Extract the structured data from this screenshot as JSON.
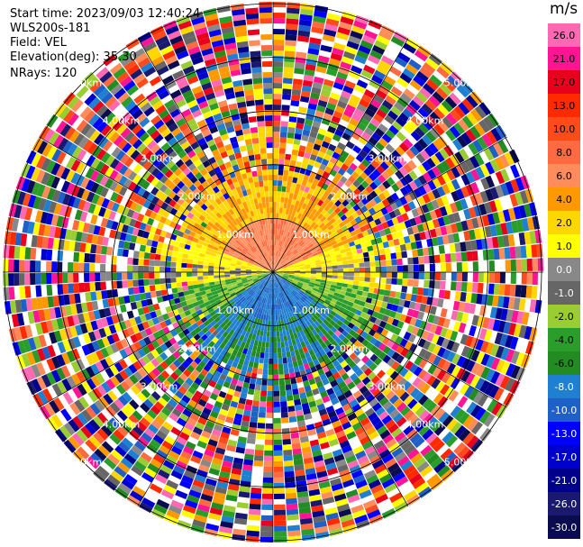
{
  "header": {
    "start_time": "Start time: 2023/09/03 12:40:24",
    "instrument": "WLS200s-181",
    "field": "Field: VEL",
    "elevation": "Elevation(deg): 35.30",
    "nrays": "NRays: 120"
  },
  "chart_data": {
    "type": "heatmap",
    "projection": "polar PPI",
    "field": "VEL",
    "units": "m/s",
    "n_rays": 120,
    "range_rings": [
      {
        "label": "1.00km"
      },
      {
        "label": "2.00km"
      },
      {
        "label": "3.00km"
      },
      {
        "label": "4.00km"
      },
      {
        "label": "5.00km"
      }
    ],
    "grid": true,
    "colorbar": {
      "position": "right",
      "ticks": [
        "26.0",
        "21.0",
        "17.0",
        "13.0",
        "10.0",
        "8.0",
        "6.0",
        "4.0",
        "2.0",
        "1.0",
        "0.0",
        "-1.0",
        "-2.0",
        "-4.0",
        "-6.0",
        "-8.0",
        "-10.0",
        "-13.0",
        "-17.0",
        "-21.0",
        "-26.0",
        "-30.0"
      ],
      "colors": [
        "#ff69b4",
        "#ff1493",
        "#e8001c",
        "#ff2a00",
        "#ff4a1a",
        "#ff6a40",
        "#ff8c5a",
        "#ff9900",
        "#ffd700",
        "#ffff00",
        "#888888",
        "#666666",
        "#9acd32",
        "#2a9d2a",
        "#228b22",
        "#1f7fd0",
        "#1f60c8",
        "#0000ff",
        "#0000cd",
        "#00008b",
        "#191970",
        "#0b0b50"
      ],
      "min": -30,
      "max": 30
    },
    "pattern": {
      "inner_positive_sector": "north: orange/red near radar",
      "east_west_band": "yellow and gray near-zero values",
      "south_negative_sector": "green to blue receding velocities",
      "outer_noise": "random multicolor beyond ~2 km"
    }
  }
}
